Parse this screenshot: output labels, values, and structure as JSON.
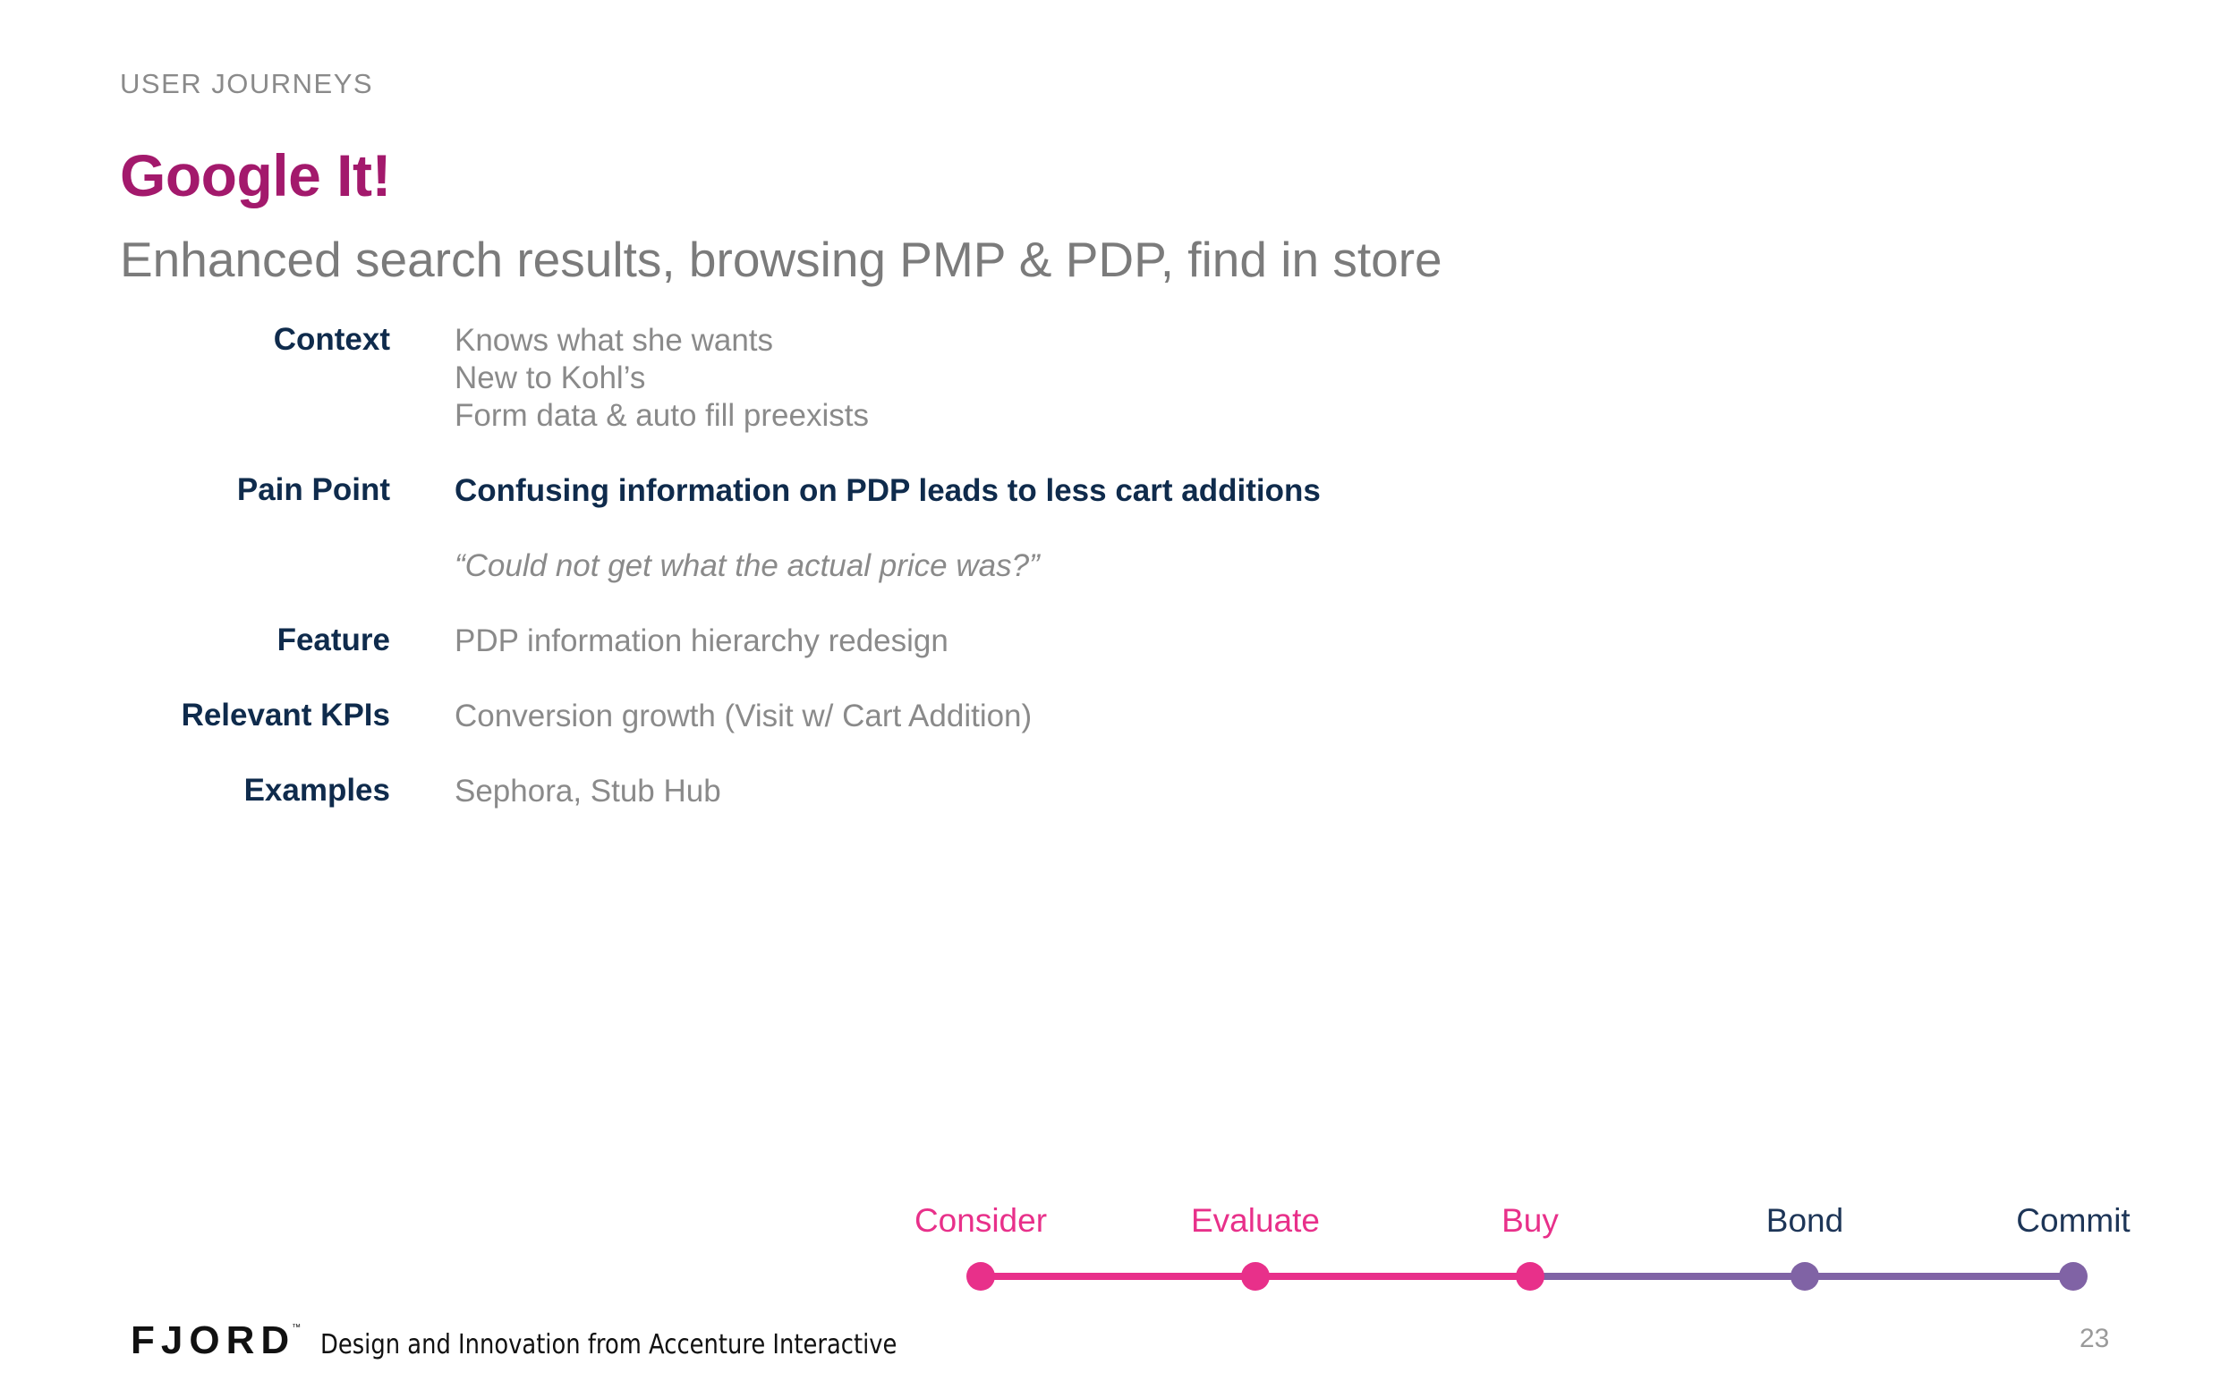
{
  "header": {
    "section": "USER JOURNEYS",
    "title": "Google It!",
    "subtitle": "Enhanced search results, browsing PMP & PDP, find in store"
  },
  "rows": {
    "context": {
      "label": "Context",
      "values": [
        "Knows what she wants",
        "New to Kohl’s",
        "Form data & auto fill preexists"
      ]
    },
    "pain_point": {
      "label": "Pain Point",
      "value": "Confusing information on PDP leads to less cart additions",
      "quote": "“Could not get what the actual price was?”"
    },
    "feature": {
      "label": "Feature",
      "value": "PDP information hierarchy redesign"
    },
    "kpis": {
      "label": "Relevant KPIs",
      "value": "Conversion growth (Visit w/ Cart Addition)"
    },
    "examples": {
      "label": "Examples",
      "value": "Sephora, Stub Hub"
    }
  },
  "journey": {
    "stages": [
      "Consider",
      "Evaluate",
      "Buy",
      "Bond",
      "Commit"
    ],
    "active_through_index": 2,
    "colors": {
      "active": "#e8308a",
      "inactive": "#8063a5"
    }
  },
  "footer": {
    "logo": "FJORD",
    "logo_tm": "™",
    "tagline": "Design and Innovation from Accenture Interactive",
    "page_number": "23"
  }
}
